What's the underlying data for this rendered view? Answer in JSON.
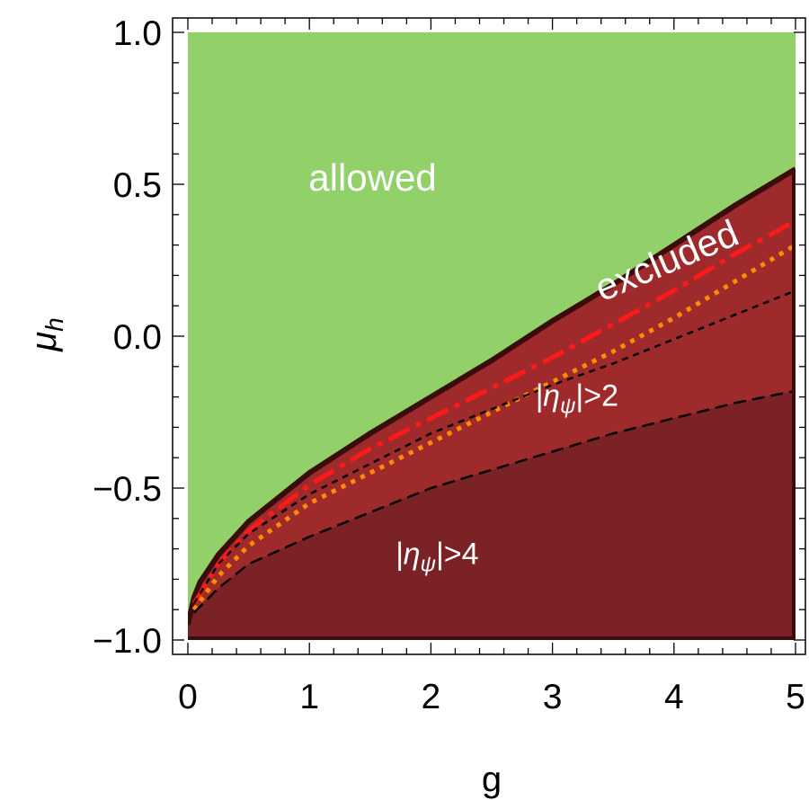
{
  "chart_data": {
    "type": "area",
    "title": "",
    "xlabel": "g",
    "ylabel": "μ",
    "ylabel_sub": "h",
    "xlim": [
      0,
      5
    ],
    "ylim": [
      -1,
      1
    ],
    "xticks": [
      0,
      1,
      2,
      3,
      4,
      5
    ],
    "xtick_labels": [
      "0",
      "1",
      "2",
      "3",
      "4",
      "5"
    ],
    "yticks": [
      -1,
      -0.5,
      0,
      0.5,
      1
    ],
    "ytick_labels": [
      "−1.0",
      "−0.5",
      "0.0",
      "0.5",
      "1.0"
    ],
    "grid": false,
    "legend": "none",
    "colors": {
      "allowed": "#92d06a",
      "excluded": "#9e2a2b",
      "eta4": "#7a2226",
      "boundary": "#3a0c0c",
      "red_dash": "#ff1a1a",
      "orange_dot": "#ff8c00",
      "black_dash": "#000000"
    },
    "regions": [
      {
        "label": "allowed",
        "text_x": 1.52,
        "text_y": 0.48
      },
      {
        "label": "excluded",
        "text_x": 3.98,
        "text_y": 0.21,
        "rotation": -23
      }
    ],
    "annotations": [
      {
        "base": "|η",
        "sub": "ψ",
        "tail": "|>2",
        "x": 3.2,
        "y": -0.23
      },
      {
        "base": "|η",
        "sub": "ψ",
        "tail": "|>4",
        "x": 2.05,
        "y": -0.75
      }
    ],
    "series": [
      {
        "style": "boundary",
        "x": [
          0,
          0.05,
          0.1,
          0.25,
          0.5,
          1,
          1.5,
          2,
          2.5,
          3,
          3.5,
          4,
          4.5,
          5
        ],
        "y": [
          -0.95,
          -0.86,
          -0.81,
          -0.72,
          -0.61,
          -0.45,
          -0.32,
          -0.2,
          -0.08,
          0.05,
          0.17,
          0.3,
          0.43,
          0.55
        ]
      },
      {
        "style": "red_dash",
        "x": [
          0.05,
          0.25,
          0.5,
          1,
          1.5,
          2,
          2.5,
          3,
          3.5,
          4,
          4.5,
          5
        ],
        "y": [
          -0.88,
          -0.75,
          -0.64,
          -0.49,
          -0.37,
          -0.27,
          -0.17,
          -0.07,
          0.04,
          0.15,
          0.27,
          0.38
        ]
      },
      {
        "style": "orange_dot",
        "x": [
          0.05,
          0.25,
          0.5,
          1,
          1.5,
          2,
          2.5,
          3,
          3.5,
          4,
          4.5,
          5
        ],
        "y": [
          -0.9,
          -0.79,
          -0.69,
          -0.55,
          -0.45,
          -0.35,
          -0.25,
          -0.15,
          -0.05,
          0.06,
          0.18,
          0.3
        ]
      },
      {
        "style": "black_dash_2",
        "x": [
          0.05,
          0.25,
          0.5,
          1,
          1.5,
          2,
          2.5,
          3,
          3.5,
          4,
          4.5,
          5
        ],
        "y": [
          -0.88,
          -0.75,
          -0.65,
          -0.52,
          -0.42,
          -0.32,
          -0.24,
          -0.16,
          -0.09,
          -0.01,
          0.07,
          0.15
        ]
      },
      {
        "style": "black_dash_4",
        "x": [
          0.05,
          0.25,
          0.5,
          1,
          1.5,
          2,
          2.5,
          3,
          3.5,
          4,
          4.5,
          5
        ],
        "y": [
          -0.91,
          -0.83,
          -0.75,
          -0.66,
          -0.58,
          -0.5,
          -0.44,
          -0.38,
          -0.32,
          -0.27,
          -0.22,
          -0.18
        ]
      }
    ]
  }
}
